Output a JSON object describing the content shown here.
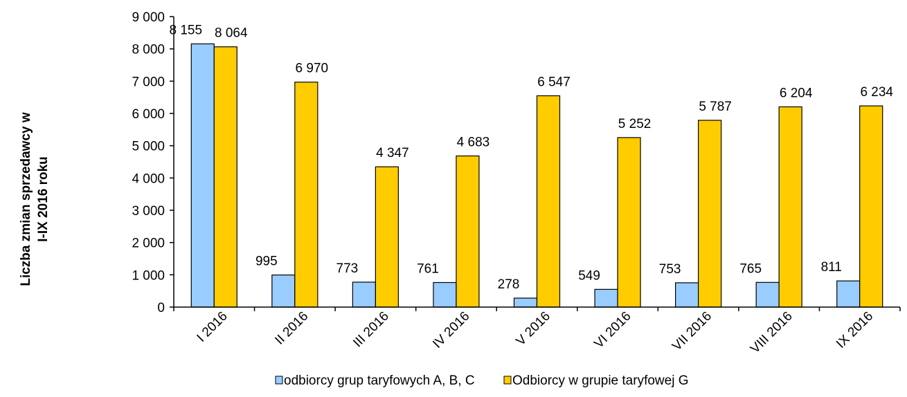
{
  "chart_data": {
    "type": "bar",
    "title": "",
    "xlabel": "",
    "ylabel": [
      "Liczba zmian sprzedawcy w",
      "I-IX 2016 roku"
    ],
    "ylim": [
      0,
      9000
    ],
    "ytick_step": 1000,
    "ytick_labels": [
      "0",
      "1 000",
      "2 000",
      "3 000",
      "4 000",
      "5 000",
      "6 000",
      "7 000",
      "8 000",
      "9 000"
    ],
    "categories": [
      "I 2016",
      "II 2016",
      "III 2016",
      "IV 2016",
      "V 2016",
      "VI 2016",
      "VII 2016",
      "VIII 2016",
      "IX 2016"
    ],
    "series": [
      {
        "name": "odbiorcy grup taryfowych A, B, C",
        "color": "#99CCFF",
        "values": [
          8155,
          995,
          773,
          761,
          278,
          549,
          753,
          765,
          811
        ],
        "labels": [
          "8 155",
          "995",
          "773",
          "761",
          "278",
          "549",
          "753",
          "765",
          "811"
        ]
      },
      {
        "name": "Odbiorcy w grupie taryfowej G",
        "color": "#FFCC00",
        "values": [
          8064,
          6970,
          4347,
          4683,
          6547,
          5252,
          5787,
          6204,
          6234
        ],
        "labels": [
          "8 064",
          "6 970",
          "4 347",
          "4 683",
          "6 547",
          "5 252",
          "5 787",
          "6 204",
          "6 234"
        ]
      }
    ],
    "grid": false,
    "legend_position": "bottom"
  }
}
